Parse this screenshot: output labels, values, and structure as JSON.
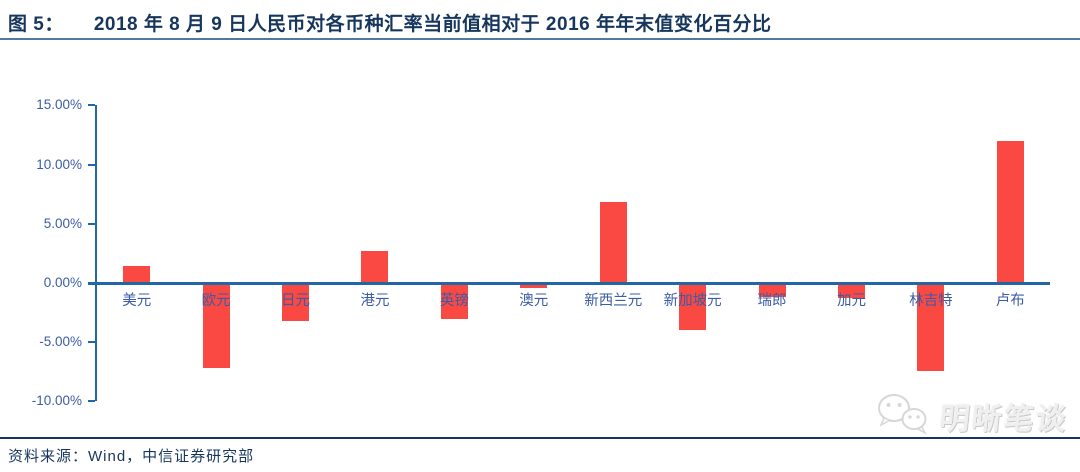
{
  "header": {
    "figure_label": "图 5：",
    "title": "2018 年 8 月 9 日人民币对各币种汇率当前值相对于 2016 年年末值变化百分比"
  },
  "chart_data": {
    "type": "bar",
    "title": "2018 年 8 月 9 日人民币对各币种汇率当前值相对于 2016 年年末值变化百分比",
    "categories": [
      "美元",
      "欧元",
      "日元",
      "港元",
      "英镑",
      "澳元",
      "新西兰元",
      "新加坡元",
      "瑞郎",
      "加元",
      "林吉特",
      "卢布"
    ],
    "values": [
      1.4,
      -7.2,
      -3.2,
      2.7,
      -3.0,
      -0.4,
      6.8,
      -4.0,
      -1.2,
      -1.3,
      -7.4,
      12.0
    ],
    "unit": "%",
    "xlabel": "",
    "ylabel": "",
    "ylim": [
      -10,
      15
    ],
    "y_ticks": [
      "15.00%",
      "10.00%",
      "5.00%",
      "0.00%",
      "-5.00%",
      "-10.00%"
    ],
    "y_tick_values": [
      15,
      10,
      5,
      0,
      -5,
      -10
    ],
    "grid": false,
    "legend_position": "none",
    "bar_color": "#FA4843",
    "axis_color": "#2166A5",
    "label_color": "#3C5CA6"
  },
  "watermark": {
    "text": "明晰笔谈",
    "icon": "wechat-chat-bubbles-icon"
  },
  "footer": {
    "source": "资料来源：Wind，中信证券研究部"
  },
  "colors": {
    "title_text": "#17365D",
    "title_rule": "#54779e",
    "footer_rule": "#17365D",
    "watermark_gray": "#efefef",
    "background": "#ffffff"
  }
}
